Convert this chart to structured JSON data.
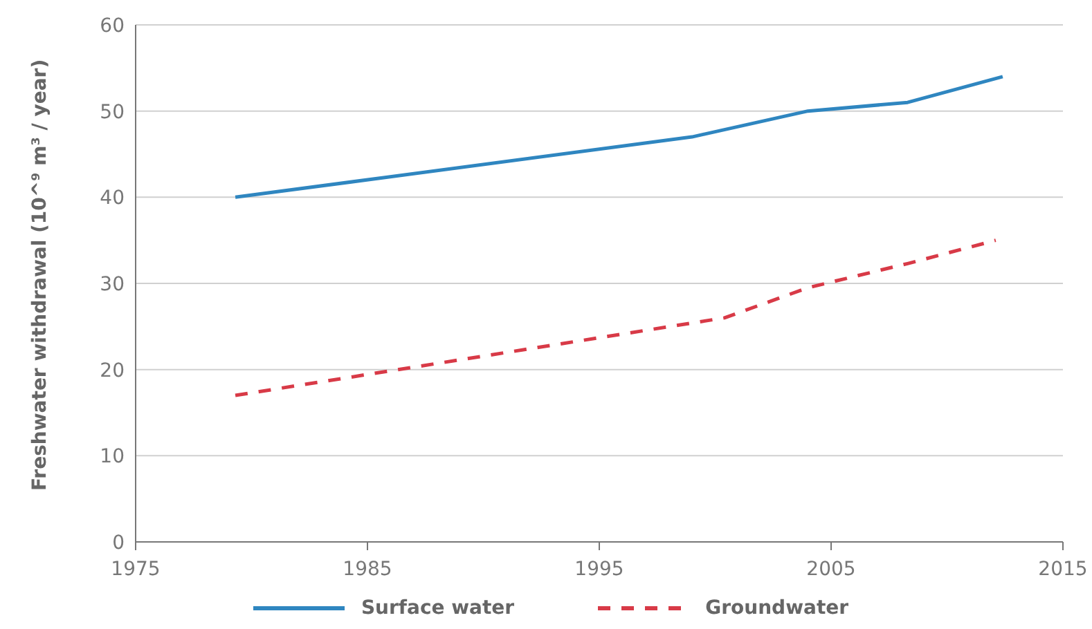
{
  "chart_data": {
    "type": "line",
    "ylabel": "Freshwater withdrawal (10^⁹ m³ / year)",
    "xlim": [
      1975,
      2015
    ],
    "xticks": [
      1975,
      1985,
      1995,
      2005,
      2015
    ],
    "ylim": [
      0,
      60
    ],
    "yticks": [
      0,
      10,
      20,
      30,
      40,
      50,
      60
    ],
    "grid": "y",
    "legend": "bottom",
    "marker": "none",
    "series": [
      {
        "name": "Surface water",
        "color": "#2f86c0",
        "line_style": "solid",
        "x": [
          1979.3,
          1999,
          2004,
          2008.3,
          2012.4
        ],
        "values": [
          40,
          47,
          50,
          51,
          54
        ]
      },
      {
        "name": "Groundwater",
        "color": "#d83a47",
        "line_style": "dashed",
        "x": [
          1979.3,
          2000.4,
          2004,
          2008.3,
          2012.1
        ],
        "values": [
          17,
          26,
          29.5,
          32.3,
          35
        ]
      }
    ]
  }
}
